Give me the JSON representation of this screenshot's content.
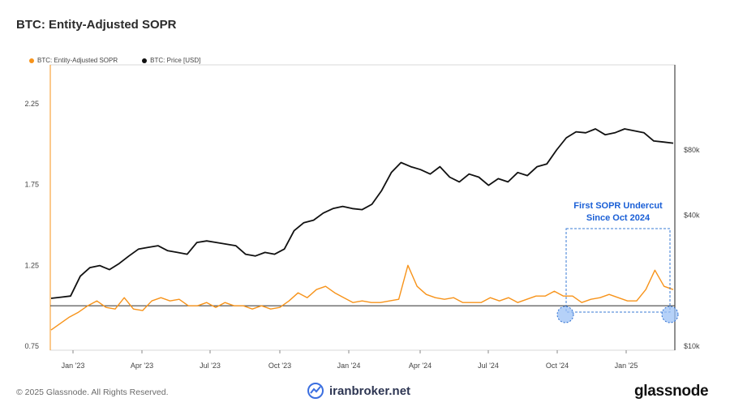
{
  "header": {
    "title": "BTC: Entity-Adjusted SOPR"
  },
  "legend": [
    {
      "label": "BTC: Entity-Adjusted SOPR",
      "color": "#f7931a"
    },
    {
      "label": "BTC: Price [USD]",
      "color": "#111111"
    }
  ],
  "footer": {
    "copyright": "© 2025 Glassnode. All Rights Reserved.",
    "watermark": "iranbroker.net",
    "brand": "glassnode"
  },
  "chart_data": {
    "type": "line",
    "x_ticks": [
      "Jan '23",
      "Apr '23",
      "Jul '23",
      "Oct '23",
      "Jan '24",
      "Apr '24",
      "Jul '24",
      "Oct '24",
      "Jan '25"
    ],
    "y_left": {
      "ticks": [
        "0.75",
        "1.25",
        "1.75",
        "2.25"
      ],
      "range": [
        0.75,
        2.25
      ]
    },
    "y_right": {
      "ticks": [
        "$10k",
        "$40k",
        "$80k"
      ],
      "scale": "log"
    },
    "reference_line": 1.0,
    "annotation": {
      "lines": [
        "First SOPR Undercut",
        "Since Oct 2024"
      ]
    },
    "series": [
      {
        "name": "BTC: Entity-Adjusted SOPR",
        "axis": "left",
        "color": "#f7931a",
        "values": [
          0.85,
          0.89,
          0.93,
          0.96,
          1.0,
          1.03,
          0.99,
          0.98,
          1.05,
          0.98,
          0.97,
          1.03,
          1.05,
          1.03,
          1.04,
          1.0,
          1.0,
          1.02,
          0.99,
          1.02,
          1.0,
          1.0,
          0.98,
          1.0,
          0.98,
          0.99,
          1.03,
          1.08,
          1.05,
          1.1,
          1.12,
          1.08,
          1.05,
          1.02,
          1.03,
          1.02,
          1.02,
          1.03,
          1.04,
          1.25,
          1.12,
          1.07,
          1.05,
          1.04,
          1.05,
          1.02,
          1.02,
          1.02,
          1.05,
          1.03,
          1.05,
          1.02,
          1.04,
          1.06,
          1.06,
          1.09,
          1.06,
          1.06,
          1.02,
          1.04,
          1.05,
          1.07,
          1.05,
          1.03,
          1.03,
          1.1,
          1.22,
          1.12,
          1.1
        ]
      },
      {
        "name": "BTC: Price [USD]",
        "axis": "right",
        "color": "#111111",
        "values": [
          16600,
          16800,
          17000,
          21000,
          23000,
          23500,
          22500,
          24000,
          26000,
          28000,
          28500,
          29000,
          27500,
          27000,
          26500,
          30000,
          30500,
          30000,
          29500,
          29000,
          26500,
          26000,
          27000,
          26500,
          28000,
          34000,
          37000,
          38000,
          41000,
          43000,
          44000,
          43000,
          42500,
          45000,
          52000,
          63000,
          70000,
          67000,
          65000,
          62000,
          67000,
          60000,
          57000,
          62000,
          60000,
          55000,
          59000,
          57000,
          63000,
          61000,
          67000,
          69000,
          80000,
          91000,
          97000,
          96000,
          100000,
          94000,
          96000,
          100000,
          98000,
          96000,
          88000,
          87000,
          86000
        ]
      }
    ]
  }
}
